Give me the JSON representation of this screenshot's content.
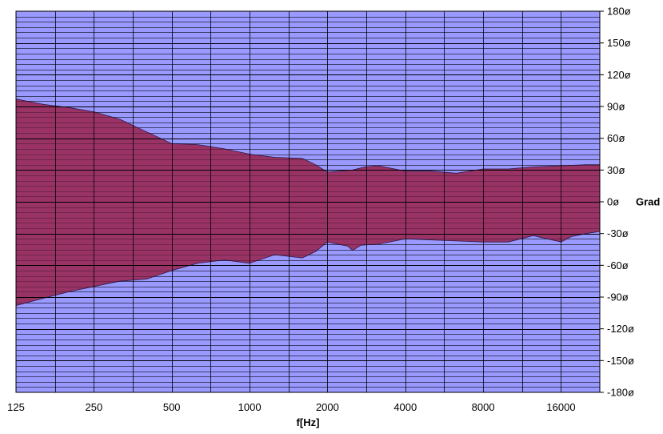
{
  "chart_data": {
    "type": "area",
    "title": "",
    "xlabel": "f[Hz]",
    "ylabel": "Grad",
    "x_scale": "log2",
    "xlim": [
      125,
      22600
    ],
    "ylim": [
      -180,
      180
    ],
    "x_tick_labels": [
      "125",
      "250",
      "500",
      "1000",
      "2000",
      "4000",
      "8000",
      "16000"
    ],
    "x_tick_values": [
      125,
      250,
      500,
      1000,
      2000,
      4000,
      8000,
      16000
    ],
    "y_tick_values": [
      180,
      150,
      120,
      90,
      60,
      30,
      0,
      -30,
      -60,
      -90,
      -120,
      -150,
      -180
    ],
    "y_tick_labels": [
      "180ø",
      "150ø",
      "120ø",
      "90ø",
      "60ø",
      "30ø",
      "0ø",
      "-30ø",
      "-60ø",
      "-90ø",
      "-120ø",
      "-150ø",
      "-180ø"
    ],
    "grid": true,
    "colors": {
      "background": "#9999ff",
      "band": "#993366",
      "grid": "#000000"
    },
    "series": [
      {
        "upper": [
          [
            125,
            97
          ],
          [
            160,
            92
          ],
          [
            200,
            89
          ],
          [
            250,
            85
          ],
          [
            315,
            78
          ],
          [
            400,
            66
          ],
          [
            500,
            55
          ],
          [
            630,
            54
          ],
          [
            800,
            50
          ],
          [
            1000,
            45
          ],
          [
            1250,
            42
          ],
          [
            1600,
            41
          ],
          [
            1800,
            35
          ],
          [
            2000,
            28
          ],
          [
            2500,
            30
          ],
          [
            2800,
            33
          ],
          [
            3150,
            34
          ],
          [
            4000,
            29
          ],
          [
            5000,
            29
          ],
          [
            6300,
            27
          ],
          [
            8000,
            31
          ],
          [
            10000,
            31
          ],
          [
            12500,
            33
          ],
          [
            16000,
            34
          ],
          [
            20000,
            35
          ],
          [
            22600,
            35
          ]
        ],
        "lower": [
          [
            125,
            -98
          ],
          [
            160,
            -91
          ],
          [
            200,
            -85
          ],
          [
            250,
            -80
          ],
          [
            315,
            -75
          ],
          [
            400,
            -73
          ],
          [
            500,
            -65
          ],
          [
            630,
            -58
          ],
          [
            800,
            -55
          ],
          [
            1000,
            -58
          ],
          [
            1250,
            -50
          ],
          [
            1600,
            -53
          ],
          [
            1800,
            -47
          ],
          [
            2000,
            -38
          ],
          [
            2400,
            -42
          ],
          [
            2500,
            -46
          ],
          [
            2700,
            -41
          ],
          [
            3150,
            -40
          ],
          [
            4000,
            -35
          ],
          [
            5000,
            -36
          ],
          [
            6300,
            -37
          ],
          [
            8000,
            -38
          ],
          [
            10000,
            -38
          ],
          [
            12500,
            -32
          ],
          [
            16000,
            -38
          ],
          [
            17500,
            -33
          ],
          [
            20000,
            -30
          ],
          [
            22600,
            -28
          ]
        ]
      }
    ]
  }
}
